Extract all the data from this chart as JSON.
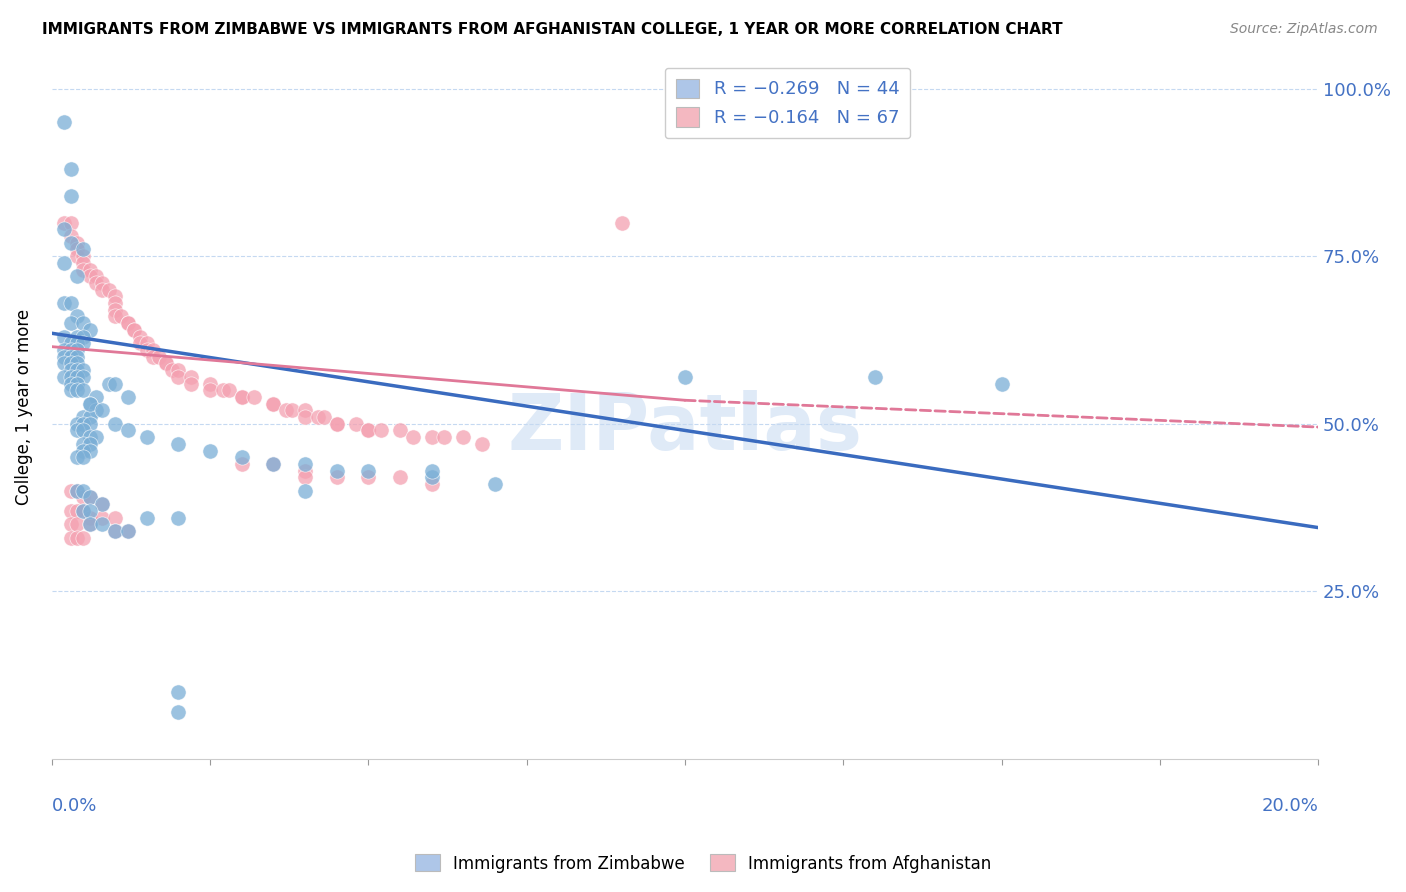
{
  "title": "IMMIGRANTS FROM ZIMBABWE VS IMMIGRANTS FROM AFGHANISTAN COLLEGE, 1 YEAR OR MORE CORRELATION CHART",
  "source": "Source: ZipAtlas.com",
  "ylabel": "College, 1 year or more",
  "ylabel_ticks": [
    "25.0%",
    "50.0%",
    "75.0%",
    "100.0%"
  ],
  "ylabel_tick_vals": [
    0.25,
    0.5,
    0.75,
    1.0
  ],
  "xmin": 0.0,
  "xmax": 0.2,
  "ymin": 0.0,
  "ymax": 1.05,
  "legend_color1": "#aec6e8",
  "legend_color2": "#f4b8c1",
  "watermark": "ZIPatlas",
  "blue_color": "#7aaed6",
  "pink_color": "#f4a0b0",
  "blue_line_color": "#3a6bbf",
  "pink_line_color": "#e07898",
  "blue_line": {
    "x0": 0.0,
    "y0": 0.635,
    "x1": 0.2,
    "y1": 0.345
  },
  "pink_solid_line": {
    "x0": 0.0,
    "y0": 0.615,
    "x1": 0.1,
    "y1": 0.535
  },
  "pink_dashed_line": {
    "x0": 0.1,
    "y0": 0.535,
    "x1": 0.2,
    "y1": 0.495
  },
  "scatter_zim": [
    [
      0.002,
      0.95
    ],
    [
      0.003,
      0.88
    ],
    [
      0.003,
      0.84
    ],
    [
      0.002,
      0.79
    ],
    [
      0.003,
      0.77
    ],
    [
      0.002,
      0.74
    ],
    [
      0.004,
      0.72
    ],
    [
      0.005,
      0.76
    ],
    [
      0.002,
      0.68
    ],
    [
      0.003,
      0.68
    ],
    [
      0.004,
      0.66
    ],
    [
      0.003,
      0.65
    ],
    [
      0.005,
      0.65
    ],
    [
      0.006,
      0.64
    ],
    [
      0.002,
      0.63
    ],
    [
      0.004,
      0.63
    ],
    [
      0.005,
      0.63
    ],
    [
      0.003,
      0.62
    ],
    [
      0.004,
      0.62
    ],
    [
      0.005,
      0.62
    ],
    [
      0.002,
      0.61
    ],
    [
      0.003,
      0.61
    ],
    [
      0.004,
      0.61
    ],
    [
      0.002,
      0.6
    ],
    [
      0.003,
      0.6
    ],
    [
      0.004,
      0.6
    ],
    [
      0.002,
      0.59
    ],
    [
      0.003,
      0.59
    ],
    [
      0.004,
      0.59
    ],
    [
      0.003,
      0.58
    ],
    [
      0.004,
      0.58
    ],
    [
      0.005,
      0.58
    ],
    [
      0.002,
      0.57
    ],
    [
      0.003,
      0.57
    ],
    [
      0.004,
      0.57
    ],
    [
      0.005,
      0.57
    ],
    [
      0.003,
      0.56
    ],
    [
      0.004,
      0.56
    ],
    [
      0.003,
      0.55
    ],
    [
      0.004,
      0.55
    ],
    [
      0.005,
      0.55
    ],
    [
      0.007,
      0.54
    ],
    [
      0.009,
      0.56
    ],
    [
      0.01,
      0.56
    ],
    [
      0.012,
      0.54
    ],
    [
      0.006,
      0.53
    ],
    [
      0.007,
      0.52
    ],
    [
      0.005,
      0.51
    ],
    [
      0.006,
      0.51
    ],
    [
      0.004,
      0.5
    ],
    [
      0.005,
      0.5
    ],
    [
      0.006,
      0.5
    ],
    [
      0.004,
      0.49
    ],
    [
      0.005,
      0.49
    ],
    [
      0.006,
      0.48
    ],
    [
      0.007,
      0.48
    ],
    [
      0.005,
      0.47
    ],
    [
      0.006,
      0.47
    ],
    [
      0.005,
      0.46
    ],
    [
      0.006,
      0.46
    ],
    [
      0.004,
      0.45
    ],
    [
      0.005,
      0.45
    ],
    [
      0.006,
      0.53
    ],
    [
      0.008,
      0.52
    ],
    [
      0.01,
      0.5
    ],
    [
      0.012,
      0.49
    ],
    [
      0.015,
      0.48
    ],
    [
      0.02,
      0.47
    ],
    [
      0.025,
      0.46
    ],
    [
      0.03,
      0.45
    ],
    [
      0.035,
      0.44
    ],
    [
      0.04,
      0.44
    ],
    [
      0.045,
      0.43
    ],
    [
      0.05,
      0.43
    ],
    [
      0.06,
      0.42
    ],
    [
      0.07,
      0.41
    ],
    [
      0.004,
      0.4
    ],
    [
      0.005,
      0.4
    ],
    [
      0.006,
      0.39
    ],
    [
      0.008,
      0.38
    ],
    [
      0.005,
      0.37
    ],
    [
      0.006,
      0.37
    ],
    [
      0.015,
      0.36
    ],
    [
      0.02,
      0.36
    ],
    [
      0.006,
      0.35
    ],
    [
      0.008,
      0.35
    ],
    [
      0.01,
      0.34
    ],
    [
      0.012,
      0.34
    ],
    [
      0.1,
      0.57
    ],
    [
      0.06,
      0.43
    ],
    [
      0.04,
      0.4
    ],
    [
      0.02,
      0.1
    ],
    [
      0.02,
      0.07
    ],
    [
      0.13,
      0.57
    ],
    [
      0.15,
      0.56
    ]
  ],
  "scatter_afg": [
    [
      0.002,
      0.8
    ],
    [
      0.003,
      0.8
    ],
    [
      0.003,
      0.78
    ],
    [
      0.004,
      0.77
    ],
    [
      0.004,
      0.76
    ],
    [
      0.004,
      0.75
    ],
    [
      0.005,
      0.75
    ],
    [
      0.005,
      0.74
    ],
    [
      0.005,
      0.73
    ],
    [
      0.006,
      0.73
    ],
    [
      0.006,
      0.72
    ],
    [
      0.007,
      0.72
    ],
    [
      0.007,
      0.71
    ],
    [
      0.008,
      0.71
    ],
    [
      0.008,
      0.7
    ],
    [
      0.009,
      0.7
    ],
    [
      0.01,
      0.69
    ],
    [
      0.01,
      0.68
    ],
    [
      0.01,
      0.67
    ],
    [
      0.01,
      0.66
    ],
    [
      0.011,
      0.66
    ],
    [
      0.012,
      0.65
    ],
    [
      0.012,
      0.65
    ],
    [
      0.013,
      0.64
    ],
    [
      0.013,
      0.64
    ],
    [
      0.014,
      0.63
    ],
    [
      0.014,
      0.62
    ],
    [
      0.015,
      0.62
    ],
    [
      0.015,
      0.61
    ],
    [
      0.016,
      0.61
    ],
    [
      0.016,
      0.6
    ],
    [
      0.017,
      0.6
    ],
    [
      0.018,
      0.59
    ],
    [
      0.018,
      0.59
    ],
    [
      0.019,
      0.58
    ],
    [
      0.02,
      0.58
    ],
    [
      0.02,
      0.57
    ],
    [
      0.022,
      0.57
    ],
    [
      0.022,
      0.56
    ],
    [
      0.025,
      0.56
    ],
    [
      0.025,
      0.55
    ],
    [
      0.027,
      0.55
    ],
    [
      0.028,
      0.55
    ],
    [
      0.03,
      0.54
    ],
    [
      0.03,
      0.54
    ],
    [
      0.032,
      0.54
    ],
    [
      0.035,
      0.53
    ],
    [
      0.035,
      0.53
    ],
    [
      0.037,
      0.52
    ],
    [
      0.038,
      0.52
    ],
    [
      0.04,
      0.52
    ],
    [
      0.04,
      0.51
    ],
    [
      0.042,
      0.51
    ],
    [
      0.043,
      0.51
    ],
    [
      0.045,
      0.5
    ],
    [
      0.045,
      0.5
    ],
    [
      0.048,
      0.5
    ],
    [
      0.05,
      0.49
    ],
    [
      0.05,
      0.49
    ],
    [
      0.052,
      0.49
    ],
    [
      0.055,
      0.49
    ],
    [
      0.057,
      0.48
    ],
    [
      0.06,
      0.48
    ],
    [
      0.062,
      0.48
    ],
    [
      0.065,
      0.48
    ],
    [
      0.068,
      0.47
    ],
    [
      0.09,
      0.8
    ],
    [
      0.03,
      0.44
    ],
    [
      0.035,
      0.44
    ],
    [
      0.04,
      0.43
    ],
    [
      0.04,
      0.42
    ],
    [
      0.045,
      0.42
    ],
    [
      0.05,
      0.42
    ],
    [
      0.055,
      0.42
    ],
    [
      0.06,
      0.41
    ],
    [
      0.003,
      0.4
    ],
    [
      0.004,
      0.4
    ],
    [
      0.005,
      0.39
    ],
    [
      0.006,
      0.39
    ],
    [
      0.008,
      0.38
    ],
    [
      0.003,
      0.37
    ],
    [
      0.004,
      0.37
    ],
    [
      0.005,
      0.37
    ],
    [
      0.006,
      0.36
    ],
    [
      0.008,
      0.36
    ],
    [
      0.01,
      0.36
    ],
    [
      0.003,
      0.35
    ],
    [
      0.004,
      0.35
    ],
    [
      0.006,
      0.35
    ],
    [
      0.01,
      0.34
    ],
    [
      0.012,
      0.34
    ],
    [
      0.003,
      0.33
    ],
    [
      0.004,
      0.33
    ],
    [
      0.005,
      0.33
    ]
  ]
}
